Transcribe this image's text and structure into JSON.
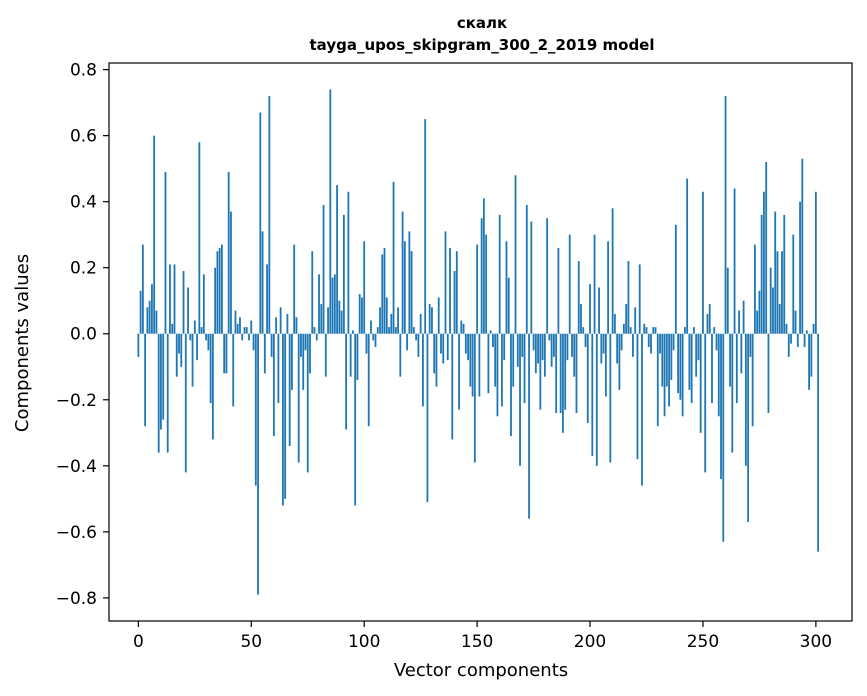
{
  "chart_data": {
    "type": "bar",
    "title": "скалк",
    "subtitle": "tayga_upos_skipgram_300_2_2019 model",
    "xlabel": "Vector components",
    "ylabel": "Components values",
    "xlim": [
      -13,
      316
    ],
    "ylim": [
      -0.87,
      0.82
    ],
    "xticks": [
      0,
      50,
      100,
      150,
      200,
      250,
      300
    ],
    "xtick_labels": [
      "0",
      "50",
      "100",
      "150",
      "200",
      "250",
      "300"
    ],
    "yticks": [
      -0.8,
      -0.6,
      -0.4,
      -0.2,
      0.0,
      0.2,
      0.4,
      0.6,
      0.8
    ],
    "ytick_labels": [
      "−0.8",
      "−0.6",
      "−0.4",
      "−0.2",
      "0.0",
      "0.2",
      "0.4",
      "0.6",
      "0.8"
    ],
    "bar_color": "#1f77b4",
    "grid": false,
    "legend": "none",
    "values": [
      -0.07,
      0.13,
      0.27,
      -0.28,
      0.08,
      0.1,
      0.15,
      0.6,
      0.07,
      -0.36,
      -0.29,
      -0.26,
      0.49,
      -0.36,
      0.21,
      0.03,
      0.21,
      -0.13,
      -0.06,
      -0.1,
      0.19,
      -0.42,
      0.14,
      -0.02,
      -0.16,
      0.04,
      -0.08,
      0.58,
      0.02,
      0.18,
      -0.02,
      -0.05,
      -0.21,
      -0.32,
      0.2,
      0.25,
      0.26,
      0.27,
      -0.12,
      -0.12,
      0.49,
      0.37,
      -0.22,
      0.07,
      0.03,
      0.05,
      -0.02,
      0.02,
      0.02,
      -0.02,
      0.04,
      -0.05,
      -0.46,
      -0.79,
      0.67,
      0.31,
      -0.12,
      0.21,
      0.72,
      -0.07,
      -0.31,
      0.05,
      -0.21,
      0.08,
      -0.52,
      -0.5,
      0.06,
      -0.34,
      -0.17,
      0.27,
      0.05,
      -0.39,
      -0.07,
      -0.17,
      -0.05,
      -0.42,
      -0.12,
      0.25,
      0.02,
      -0.02,
      0.18,
      0.09,
      0.39,
      -0.13,
      0.08,
      0.74,
      0.17,
      0.18,
      0.45,
      0.1,
      0.07,
      0.36,
      -0.29,
      0.43,
      -0.13,
      0.01,
      -0.52,
      -0.14,
      0.12,
      0.11,
      0.28,
      -0.06,
      -0.28,
      0.04,
      -0.02,
      -0.04,
      0.02,
      0.08,
      0.24,
      0.26,
      0.11,
      0.02,
      0.06,
      0.46,
      0.02,
      0.08,
      -0.13,
      0.37,
      0.28,
      -0.05,
      0.31,
      0.25,
      0.02,
      -0.02,
      -0.07,
      0.06,
      -0.22,
      0.65,
      -0.51,
      0.09,
      0.08,
      -0.12,
      -0.16,
      0.11,
      -0.06,
      -0.09,
      0.31,
      -0.08,
      0.26,
      -0.32,
      0.19,
      0.25,
      -0.23,
      0.04,
      0.03,
      -0.06,
      -0.08,
      -0.16,
      -0.19,
      -0.39,
      0.27,
      -0.19,
      0.35,
      0.41,
      0.3,
      -0.18,
      0.01,
      -0.04,
      -0.16,
      -0.25,
      0.36,
      -0.22,
      -0.08,
      0.28,
      0.17,
      -0.31,
      -0.16,
      0.48,
      -0.1,
      -0.4,
      -0.07,
      -0.21,
      0.39,
      -0.56,
      0.34,
      -0.05,
      -0.12,
      -0.09,
      -0.23,
      -0.08,
      -0.13,
      0.35,
      -0.02,
      -0.1,
      -0.07,
      -0.24,
      0.26,
      -0.24,
      -0.3,
      -0.23,
      -0.08,
      0.3,
      -0.07,
      -0.13,
      -0.24,
      0.22,
      0.09,
      0.02,
      -0.04,
      -0.27,
      0.15,
      -0.37,
      0.3,
      -0.4,
      0.14,
      -0.09,
      -0.06,
      -0.19,
      0.28,
      -0.39,
      0.38,
      0.06,
      -0.09,
      -0.17,
      -0.05,
      0.03,
      0.09,
      0.22,
      0.02,
      -0.07,
      0.08,
      -0.38,
      0.21,
      -0.46,
      0.03,
      0.02,
      -0.04,
      -0.06,
      0.02,
      0.02,
      -0.28,
      -0.06,
      -0.16,
      -0.25,
      -0.16,
      -0.22,
      -0.14,
      -0.05,
      0.33,
      -0.18,
      -0.2,
      -0.25,
      0.02,
      0.47,
      -0.17,
      -0.21,
      0.02,
      -0.13,
      -0.08,
      -0.3,
      0.43,
      -0.42,
      0.06,
      0.09,
      -0.21,
      0.02,
      -0.05,
      -0.25,
      -0.44,
      -0.63,
      0.72,
      0.2,
      -0.16,
      -0.36,
      0.44,
      -0.21,
      0.07,
      -0.12,
      0.1,
      -0.4,
      -0.57,
      -0.07,
      -0.28,
      0.27,
      0.07,
      0.13,
      0.36,
      0.43,
      0.52,
      -0.24,
      0.2,
      0.14,
      0.37,
      0.25,
      0.09,
      0.25,
      0.36,
      0.03,
      -0.07,
      -0.03,
      0.3,
      0.07,
      -0.04,
      0.4,
      0.53,
      -0.04,
      0.01,
      -0.17,
      -0.13,
      0.03,
      0.43,
      -0.66
    ]
  }
}
